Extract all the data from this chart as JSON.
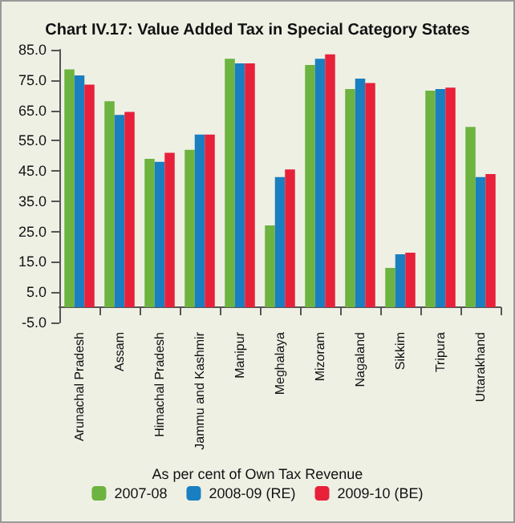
{
  "chart_data": {
    "type": "bar",
    "title": "Chart IV.17: Value Added Tax in Special Category States",
    "xlabel": "As per cent of Own Tax Revenue",
    "categories": [
      "Arunachal Pradesh",
      "Assam",
      "Himachal Pradesh",
      "Jammu and Kashmir",
      "Manipur",
      "Meghalaya",
      "Mizoram",
      "Nagaland",
      "Sikkim",
      "Tripura",
      "Uttarakhand"
    ],
    "series": [
      {
        "name": "2007-08",
        "color": "#6db33f",
        "values": [
          78.5,
          68,
          49,
          52,
          82,
          27,
          80,
          72,
          13,
          71.5,
          59.5
        ]
      },
      {
        "name": "2008-09 (RE)",
        "color": "#1a7fc1",
        "values": [
          76.5,
          63.5,
          48,
          57,
          80.5,
          43,
          82,
          75.5,
          17.5,
          72,
          43
        ]
      },
      {
        "name": "2009-10 (BE)",
        "color": "#e8203a",
        "values": [
          73.5,
          64.5,
          51,
          57,
          80.5,
          45.5,
          83.5,
          74,
          18,
          72.5,
          44
        ]
      }
    ],
    "ylim": [
      -5,
      85
    ],
    "yticks": [
      {
        "value": -5,
        "label": "-5.0"
      },
      {
        "value": 5,
        "label": "5.0"
      },
      {
        "value": 15,
        "label": "15.0"
      },
      {
        "value": 25,
        "label": "25.0"
      },
      {
        "value": 35,
        "label": "35.0"
      },
      {
        "value": 45,
        "label": "45.0"
      },
      {
        "value": 55,
        "label": "55.0"
      },
      {
        "value": 65,
        "label": "65.0"
      },
      {
        "value": 75,
        "label": "75.0"
      },
      {
        "value": 85,
        "label": "85.0"
      }
    ],
    "grid": false,
    "legend": "bottom"
  }
}
